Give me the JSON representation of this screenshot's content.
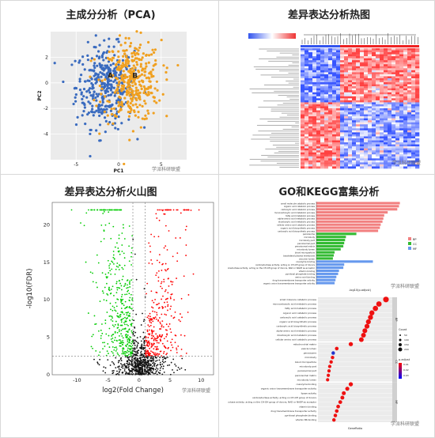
{
  "panels": {
    "pca": {
      "title": "主成分分析（PCA)"
    },
    "heatmap": {
      "title": "差异表达分析热图"
    },
    "volcano": {
      "title": "差异表达分析火山图"
    },
    "enrich": {
      "title": "GO和KEGG富集分析"
    }
  },
  "watermark": "学派科研联盟",
  "colors": {
    "groupA": "#3a6bbf",
    "groupB": "#f0a020",
    "up": "#ff0000",
    "down": "#00cc00",
    "ns": "#111111",
    "bp": "#f28080",
    "cc": "#33bb33",
    "mf": "#6699ee",
    "heatLow": "#3355ee",
    "heatHigh": "#ee3333",
    "bar": "#e41a1c"
  },
  "chart_data": [
    {
      "type": "scatter",
      "title": "主成分分析（PCA)",
      "xlabel": "PC1",
      "ylabel": "PC2",
      "xlim": [
        -8,
        8
      ],
      "ylim": [
        -6,
        4
      ],
      "xticks": [
        -5,
        0,
        5
      ],
      "yticks": [
        -4,
        -2,
        0,
        2
      ],
      "series": [
        {
          "name": "A"
        },
        {
          "name": "B"
        }
      ],
      "labels": [
        "A",
        "B"
      ]
    },
    {
      "type": "heatmap",
      "title": "差异表达分析热图"
    },
    {
      "type": "scatter",
      "title": "差异表达分析火山图",
      "xlabel": "log2(Fold Change)",
      "ylabel": "-log10(FDR)",
      "xlim": [
        -14,
        12
      ],
      "ylim": [
        0,
        23
      ],
      "xticks": [
        -10,
        -5,
        0,
        5,
        10
      ],
      "yticks": [
        0,
        5,
        10,
        15,
        20
      ],
      "thresholds": {
        "fc": [
          -1,
          1
        ],
        "fdr": 2.5
      },
      "series": [
        {
          "name": "down"
        },
        {
          "name": "ns"
        },
        {
          "name": "up"
        }
      ]
    },
    {
      "type": "bar",
      "title": "GO和KEGG富集分析",
      "orientation": "horizontal",
      "xlabel": "-log10(p.adjust)",
      "legend": [
        "BP",
        "CC",
        "MF"
      ],
      "categories": [
        "small molecule catabolic process",
        "organic acid catabolic process",
        "carboxylic acid catabolic process",
        "monocarboxylic acid metabolic process",
        "fatty acid metabolic process",
        "alpha-amino acid metabolic process",
        "dicarboxylic acid metabolic process",
        "cellular amino acid catabolic process",
        "organic acid biosynthetic process",
        "carboxylic acid biosynthetic process",
        "peroxisome",
        "microbody",
        "microbody part",
        "peroxisomal part",
        "peroxisomal matrix",
        "microbody lumen",
        "blood microparticle",
        "basolateral plasma membrane",
        "vacuolar lumen",
        "coenzyme binding",
        "oxidoreductase activity, acting on CH-OH group of donors",
        "oxidoreductase activity, acting on the CH-OH group of donors, NAD or NADP as acceptor",
        "vitamin binding",
        "pyridoxal phosphate binding",
        "amino acid binding",
        "drug transmembrane transporter activity",
        "organic anion transmembrane transporter activity"
      ],
      "values": [
        9.6,
        9.5,
        9.3,
        8.2,
        7.8,
        7.7,
        7.6,
        7.4,
        7.3,
        7.1,
        4.6,
        3.4,
        3.3,
        3.2,
        3.1,
        2.8,
        2.1,
        2.0,
        1.9,
        6.5,
        3.2,
        3.1,
        2.6,
        2.5,
        2.3,
        2.2,
        2.1
      ],
      "groups": [
        "BP",
        "BP",
        "BP",
        "BP",
        "BP",
        "BP",
        "BP",
        "BP",
        "BP",
        "BP",
        "CC",
        "CC",
        "CC",
        "CC",
        "CC",
        "CC",
        "CC",
        "CC",
        "CC",
        "MF",
        "MF",
        "MF",
        "MF",
        "MF",
        "MF",
        "MF",
        "MF"
      ]
    },
    {
      "type": "scatter",
      "title": "GO和KEGG富集分析",
      "xlabel": "GeneRatio",
      "legend_size_title": "Count",
      "legend_color_title": "p.adjust",
      "size_ticks": [
        "50",
        "100",
        "150",
        "200"
      ],
      "color_ticks": [
        "0.01",
        "0.02",
        "0.03"
      ],
      "facets": [
        "BP",
        "CC",
        "MF"
      ],
      "categories": [
        "small molecule catabolic process",
        "monocarboxylic acid metabolic process",
        "fatty acid metabolic process",
        "organic acid catabolic process",
        "carboxylic acid catabolic process",
        "organic acid biosynthetic process",
        "carboxylic acid biosynthetic process",
        "alpha-amino acid metabolic process",
        "dicarboxylic acid metabolic process",
        "cellular amino acid catabolic process",
        "mitochondrial matrix",
        "vesicle lumen",
        "peroxisome",
        "microbody",
        "blood microparticle",
        "microbody part",
        "peroxisomal part",
        "peroxisomal matrix",
        "microbody lumen",
        "coenzyme binding",
        "organic anion transmembrane transporter activity",
        "lipase activity",
        "oxidoreductase activity, acting on CH-OH group of donors",
        "oxidoreductase activity, acting on the CH-OH group of donors, NAD or NADP as acceptor",
        "vitamin binding",
        "drug transmembrane transporter activity",
        "pyridoxal phosphate binding",
        "vitamin B6 binding"
      ],
      "x": [
        0.11,
        0.1,
        0.095,
        0.09,
        0.088,
        0.085,
        0.083,
        0.08,
        0.078,
        0.075,
        0.06,
        0.04,
        0.035,
        0.034,
        0.032,
        0.03,
        0.029,
        0.028,
        0.027,
        0.06,
        0.055,
        0.05,
        0.048,
        0.045,
        0.042,
        0.04,
        0.038,
        0.036
      ]
    }
  ]
}
